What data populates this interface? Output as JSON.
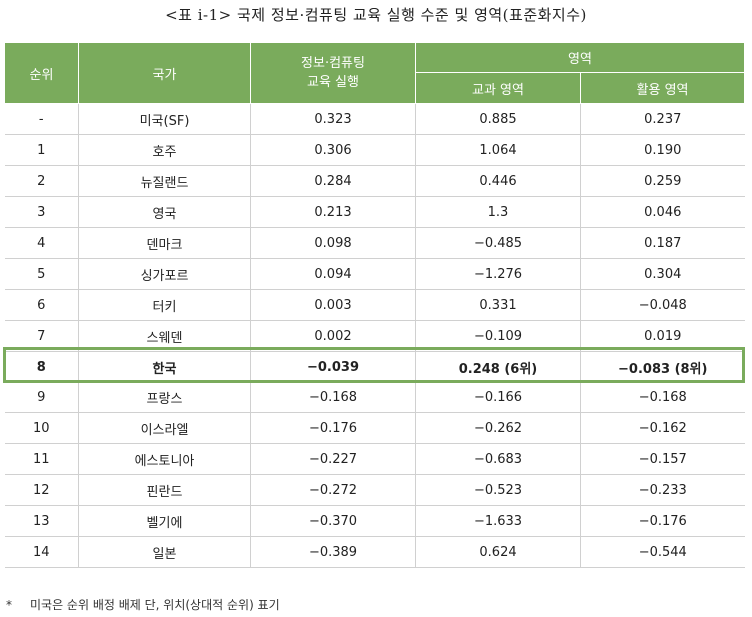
{
  "caption": "<표 ⅰ-1> 국제 정보·컴퓨팅 교육 실행 수준 및 영역(표준화지수)",
  "headers": {
    "rank": "순위",
    "country": "국가",
    "practice_line1": "정보·컴퓨팅",
    "practice_line2": "교육 실행",
    "domain": "영역",
    "subject": "교과 영역",
    "usage": "활용 영역"
  },
  "rows": [
    {
      "rank": "-",
      "country": "미국(SF)",
      "practice": "0.323",
      "subject": "0.885",
      "usage": "0.237"
    },
    {
      "rank": "1",
      "country": "호주",
      "practice": "0.306",
      "subject": "1.064",
      "usage": "0.190"
    },
    {
      "rank": "2",
      "country": "뉴질랜드",
      "practice": "0.284",
      "subject": "0.446",
      "usage": "0.259"
    },
    {
      "rank": "3",
      "country": "영국",
      "practice": "0.213",
      "subject": "1.3",
      "usage": "0.046"
    },
    {
      "rank": "4",
      "country": "덴마크",
      "practice": "0.098",
      "subject": "−0.485",
      "usage": "0.187"
    },
    {
      "rank": "5",
      "country": "싱가포르",
      "practice": "0.094",
      "subject": "−1.276",
      "usage": "0.304"
    },
    {
      "rank": "6",
      "country": "터키",
      "practice": "0.003",
      "subject": "0.331",
      "usage": "−0.048"
    },
    {
      "rank": "7",
      "country": "스웨덴",
      "practice": "0.002",
      "subject": "−0.109",
      "usage": "0.019"
    },
    {
      "rank": "8",
      "country": "한국",
      "practice": "−0.039",
      "subject": "0.248 (6위)",
      "usage": "−0.083 (8위)"
    },
    {
      "rank": "9",
      "country": "프랑스",
      "practice": "−0.168",
      "subject": "−0.166",
      "usage": "−0.168"
    },
    {
      "rank": "10",
      "country": "이스라엘",
      "practice": "−0.176",
      "subject": "−0.262",
      "usage": "−0.162"
    },
    {
      "rank": "11",
      "country": "에스토니아",
      "practice": "−0.227",
      "subject": "−0.683",
      "usage": "−0.157"
    },
    {
      "rank": "12",
      "country": "핀란드",
      "practice": "−0.272",
      "subject": "−0.523",
      "usage": "−0.233"
    },
    {
      "rank": "13",
      "country": "벨기에",
      "practice": "−0.370",
      "subject": "−1.633",
      "usage": "−0.176"
    },
    {
      "rank": "14",
      "country": "일본",
      "practice": "−0.389",
      "subject": "0.624",
      "usage": "−0.544"
    }
  ],
  "highlight_row": 8,
  "footnote": {
    "marker": "*",
    "text": "미국은 순위 배정 배제 단, 위치(상대적 순위) 표기"
  },
  "colors": {
    "header_bg": "#7aab5c",
    "highlight_border": "#7aab5c"
  }
}
